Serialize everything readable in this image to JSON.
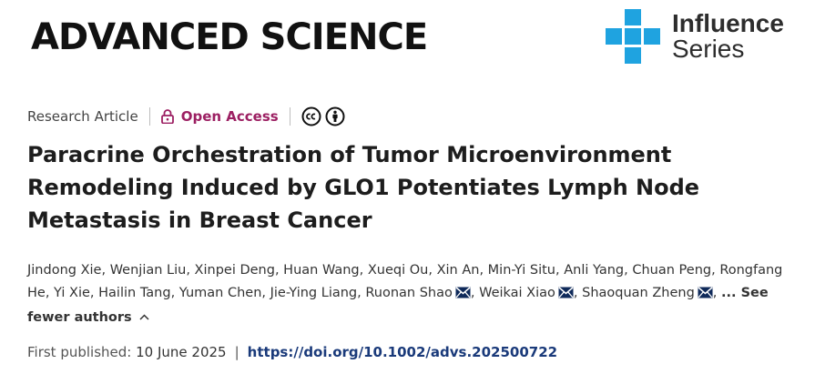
{
  "header": {
    "journal_name": "ADVANCED SCIENCE",
    "series_line1": "Influence",
    "series_line2": "Series",
    "series_icon": "blue-plus-cross-logo",
    "brand_color": "#1fa3e0"
  },
  "meta": {
    "article_type": "Research Article",
    "open_access_label": "Open Access",
    "open_access_icon": "lock-open-icon",
    "license_icons": [
      "cc-icon",
      "by-attribution-icon"
    ],
    "accent_color": "#9c1f62"
  },
  "title": "Paracrine Orchestration of Tumor Microenvironment Remodeling Induced by GLO1 Potentiates Lymph Node Metastasis in Breast Cancer",
  "authors": [
    {
      "name": "Jindong Xie",
      "corresponding": false
    },
    {
      "name": "Wenjian Liu",
      "corresponding": false
    },
    {
      "name": "Xinpei Deng",
      "corresponding": false
    },
    {
      "name": "Huan Wang",
      "corresponding": false
    },
    {
      "name": "Xueqi Ou",
      "corresponding": false
    },
    {
      "name": "Xin An",
      "corresponding": false
    },
    {
      "name": "Min-Yi Situ",
      "corresponding": false
    },
    {
      "name": "Anli Yang",
      "corresponding": false
    },
    {
      "name": "Chuan Peng",
      "corresponding": false
    },
    {
      "name": "Rongfang He",
      "corresponding": false
    },
    {
      "name": "Yi Xie",
      "corresponding": false
    },
    {
      "name": "Hailin Tang",
      "corresponding": false
    },
    {
      "name": "Yuman Chen",
      "corresponding": false
    },
    {
      "name": "Jie-Ying Liang",
      "corresponding": false
    },
    {
      "name": "Ruonan Shao",
      "corresponding": true
    },
    {
      "name": "Weikai Xiao",
      "corresponding": true
    },
    {
      "name": "Shaoquan Zheng",
      "corresponding": true
    }
  ],
  "see_fewer_label": "... See fewer authors",
  "publication": {
    "first_published_label": "First published:",
    "date": "10 June 2025",
    "separator": "|",
    "doi": "https://doi.org/10.1002/advs.202500722"
  }
}
